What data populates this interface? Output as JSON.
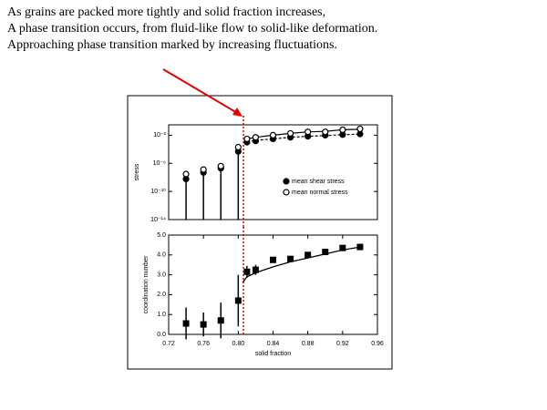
{
  "slide_text": [
    "As grains are packed more tightly and solid fraction increases,",
    "A phase transition occurs, from fluid-like flow to solid-like deformation.",
    "Approaching phase transition marked by increasing fluctuations."
  ],
  "chart_data": [
    {
      "type": "scatter",
      "ylabel": "stress",
      "log_y": true,
      "x": [
        0.74,
        0.76,
        0.78,
        0.8,
        0.81,
        0.82,
        0.84,
        0.86,
        0.88,
        0.9,
        0.92,
        0.94
      ],
      "xlim": [
        0.72,
        0.96
      ],
      "ylim": [
        1e-14,
        0.3
      ],
      "yticks": [
        {
          "value": 0.01,
          "label": "10⁻²"
        },
        {
          "value": 1e-06,
          "label": "10⁻⁶"
        },
        {
          "value": 1e-10,
          "label": "10⁻¹⁰"
        },
        {
          "value": 1e-14,
          "label": "10⁻¹⁴"
        }
      ],
      "series": [
        {
          "name": "mean shear stress",
          "color": "#000000",
          "marker": "circle",
          "filled": true,
          "dash": true,
          "values": [
            6e-09,
            5e-08,
            2e-07,
            5e-05,
            0.001,
            0.0015,
            0.003,
            0.005,
            0.007,
            0.01,
            0.012,
            0.015
          ],
          "lower": [
            1e-14,
            1e-14,
            1e-14,
            1e-14,
            null,
            null,
            null,
            null,
            null,
            null,
            null,
            null
          ],
          "fit": [
            null,
            null,
            null,
            null,
            0.0012,
            0.0018,
            0.003,
            0.005,
            0.007,
            0.009,
            0.012,
            0.014
          ]
        },
        {
          "name": "mean normal stress",
          "color": "#000000",
          "marker": "circle",
          "filled": false,
          "dash": false,
          "values": [
            3e-08,
            1.3e-07,
            4e-07,
            0.0002,
            0.003,
            0.005,
            0.01,
            0.018,
            0.03,
            0.03,
            0.06,
            0.08
          ],
          "fit": [
            null,
            null,
            null,
            null,
            0.003,
            0.005,
            0.01,
            0.018,
            0.03,
            0.035,
            0.06,
            0.07
          ]
        }
      ],
      "legend": "center-right",
      "vline": 0.806,
      "vline_color": "#e00000"
    },
    {
      "type": "scatter",
      "ylabel": "coordination number",
      "xlabel": "solid fraction",
      "x": [
        0.74,
        0.76,
        0.78,
        0.8,
        0.81,
        0.82,
        0.84,
        0.86,
        0.88,
        0.9,
        0.92,
        0.94
      ],
      "xlim": [
        0.72,
        0.96
      ],
      "ylim": [
        0,
        5
      ],
      "xticks": [
        0.72,
        0.76,
        {
          "value": 0.8,
          "label": "0.80"
        },
        0.84,
        0.88,
        0.92,
        0.96
      ],
      "yticks": [
        {
          "value": 0,
          "label": "0.0"
        },
        {
          "value": 1,
          "label": "1.0"
        },
        {
          "value": 2,
          "label": "2.0"
        },
        {
          "value": 3,
          "label": "3.0"
        },
        {
          "value": 4,
          "label": "4.0"
        },
        {
          "value": 5,
          "label": "5.0"
        }
      ],
      "series": [
        {
          "color": "#000000",
          "marker": "square",
          "filled": true,
          "values": [
            0.55,
            0.5,
            0.7,
            1.7,
            3.15,
            3.25,
            3.75,
            3.8,
            4.0,
            4.15,
            4.35,
            4.4
          ],
          "errors": [
            0.8,
            0.6,
            0.9,
            1.3,
            0.3,
            0.25,
            0.1,
            0.1,
            0.1,
            0.1,
            0.1,
            0.1
          ]
        }
      ],
      "fit": {
        "x": [
          0.805,
          0.81,
          0.82,
          0.84,
          0.86,
          0.88,
          0.9,
          0.92,
          0.94
        ],
        "values": [
          2.6,
          2.9,
          3.1,
          3.4,
          3.65,
          3.85,
          4.05,
          4.25,
          4.4
        ]
      },
      "vline": 0.806,
      "vline_color": "#e00000"
    }
  ]
}
